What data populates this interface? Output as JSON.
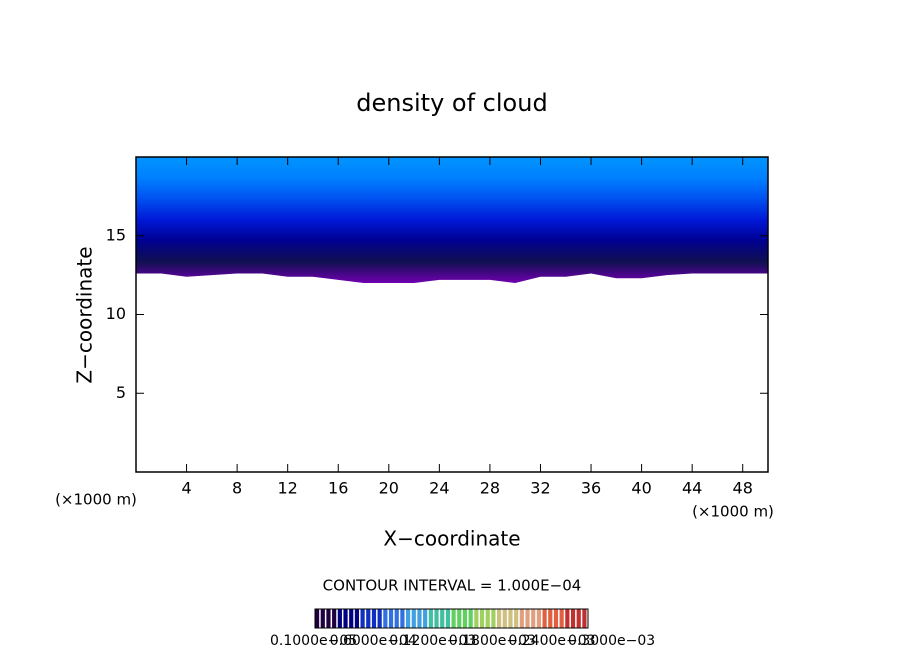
{
  "chart_data": {
    "type": "contour",
    "title": "density of cloud",
    "x_label": "X−coordinate",
    "y_label": "Z−coordinate",
    "x_unit": "(×1000 m)",
    "y_unit": "(×1000 m)",
    "x": [
      0,
      2,
      4,
      6,
      8,
      10,
      12,
      14,
      16,
      18,
      20,
      22,
      24,
      26,
      28,
      30,
      32,
      34,
      36,
      38,
      40,
      42,
      44,
      46,
      48,
      50
    ],
    "cloud_base": [
      12.6,
      12.6,
      12.4,
      12.5,
      12.6,
      12.6,
      12.4,
      12.4,
      12.2,
      12.0,
      12.0,
      12.0,
      12.2,
      12.2,
      12.2,
      12.0,
      12.4,
      12.4,
      12.6,
      12.3,
      12.3,
      12.5,
      12.6,
      12.6,
      12.6,
      12.6
    ],
    "fill_colors": [
      "#0094ff",
      "#0080ff",
      "#0050f0",
      "#0018d8",
      "#000090",
      "#101050",
      "#7000b0"
    ],
    "xlim": [
      0,
      50
    ],
    "ylim": [
      0,
      20
    ],
    "xticks": [
      4,
      8,
      12,
      16,
      20,
      24,
      28,
      32,
      36,
      40,
      44,
      48
    ],
    "yticks": [
      5,
      10,
      15
    ],
    "contour_interval": "CONTOUR INTERVAL = 1.000E−04",
    "colorbar_colors": [
      "#200040",
      "#000080",
      "#1030c0",
      "#3070e0",
      "#40a0e0",
      "#40c0a0",
      "#60d060",
      "#a0d060",
      "#d0c080",
      "#e0a080",
      "#e06040",
      "#c03030"
    ],
    "colorbar_labels": [
      "0.1000e−05",
      "0.6000e−04",
      "0.1200e−03",
      "0.1800e−03",
      "0.2400e−03",
      "0.3000e−03"
    ]
  }
}
